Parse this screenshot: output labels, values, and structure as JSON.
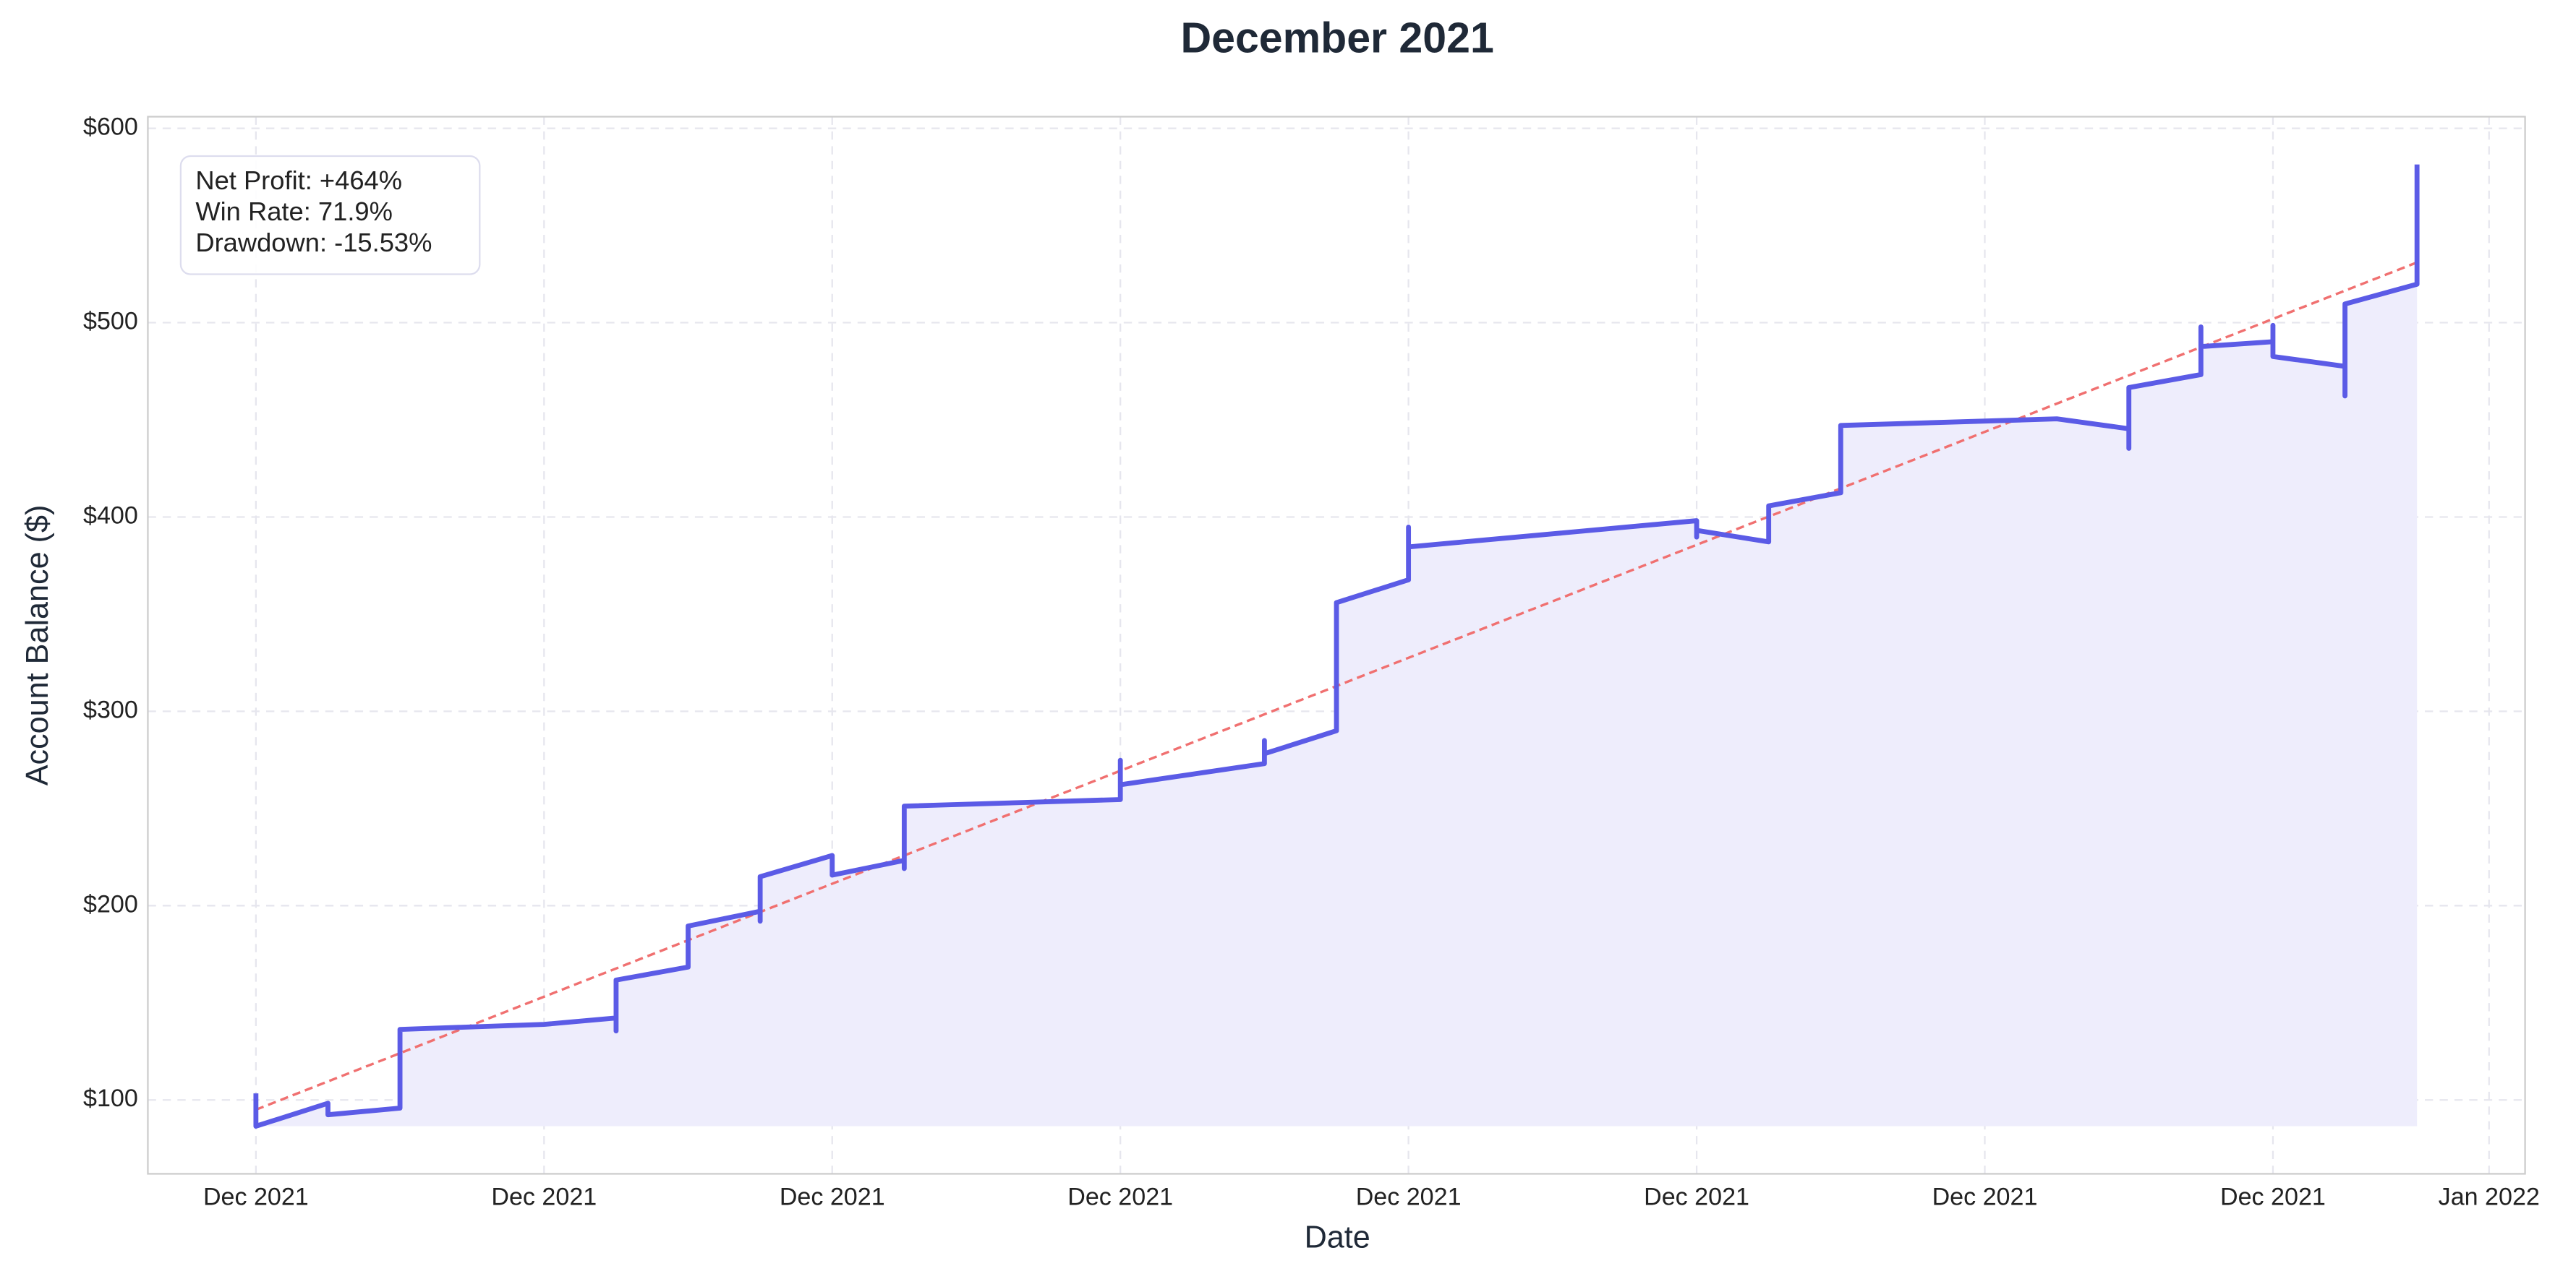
{
  "chart_data": {
    "type": "line",
    "title": "December 2021",
    "xlabel": "Date",
    "ylabel": "Account Balance ($)",
    "xlim": [
      -1.5,
      31.5
    ],
    "ylim": [
      62,
      606
    ],
    "xticks": [
      {
        "value": 0,
        "label": "Dec 2021"
      },
      {
        "value": 4,
        "label": "Dec 2021"
      },
      {
        "value": 8,
        "label": "Dec 2021"
      },
      {
        "value": 12,
        "label": "Dec 2021"
      },
      {
        "value": 16,
        "label": "Dec 2021"
      },
      {
        "value": 20,
        "label": "Dec 2021"
      },
      {
        "value": 24,
        "label": "Dec 2021"
      },
      {
        "value": 28,
        "label": "Dec 2021"
      },
      {
        "value": 31,
        "label": "Jan 2022"
      }
    ],
    "yticks": [
      {
        "value": 100,
        "label": "$100"
      },
      {
        "value": 200,
        "label": "$200"
      },
      {
        "value": 300,
        "label": "$300"
      },
      {
        "value": 400,
        "label": "$400"
      },
      {
        "value": 500,
        "label": "$500"
      },
      {
        "value": 600,
        "label": "$600"
      }
    ],
    "grid": true,
    "color": "#5b5be6",
    "fill_color": "#eeedfc",
    "x": [
      0,
      0,
      1,
      1,
      2,
      2,
      4,
      5,
      5,
      5,
      6,
      6,
      7,
      7,
      7,
      8,
      8,
      9,
      9,
      9,
      12,
      12,
      12,
      14,
      14,
      14,
      15,
      15,
      16,
      16,
      16,
      20,
      20,
      20,
      21,
      21,
      22,
      22,
      25,
      26,
      26,
      26,
      27,
      27,
      27,
      28,
      28,
      28,
      29,
      29,
      29,
      30,
      30
    ],
    "values": [
      103.4,
      86.5,
      98.3,
      92.4,
      95.8,
      136.3,
      138.9,
      142.2,
      135.5,
      161.7,
      168.4,
      189.5,
      197.1,
      192,
      214.9,
      225.8,
      215.7,
      223.3,
      219.1,
      251.2,
      254.6,
      274.8,
      262.2,
      273.1,
      285,
      278.2,
      290,
      355.9,
      367.7,
      394.8,
      384.6,
      398.1,
      389.7,
      393.1,
      387.2,
      405.7,
      412.5,
      447.1,
      450.5,
      445.4,
      435.3,
      466.6,
      473.3,
      497.8,
      487.7,
      490.2,
      498.6,
      482.6,
      477.5,
      462.3,
      509.6,
      519.8,
      581.4
    ],
    "trend": {
      "color": "#f07070",
      "x": [
        0,
        30
      ],
      "values": [
        95,
        531
      ]
    },
    "stats": [
      "Net Profit: +464%",
      "Win Rate: 71.9%",
      "Drawdown: -15.53%"
    ]
  }
}
